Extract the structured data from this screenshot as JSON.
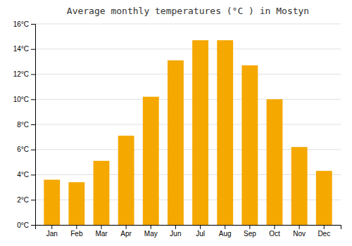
{
  "chart_data": {
    "type": "bar",
    "title": "Average monthly temperatures (°C ) in Mostyn",
    "categories": [
      "Jan",
      "Feb",
      "Mar",
      "Apr",
      "May",
      "Jun",
      "Jul",
      "Aug",
      "Sep",
      "Oct",
      "Nov",
      "Dec"
    ],
    "values": [
      3.6,
      3.4,
      5.1,
      7.1,
      10.2,
      13.1,
      14.7,
      14.7,
      12.7,
      10.0,
      6.2,
      4.3
    ],
    "color": "#F5A800",
    "ylim": [
      0,
      16
    ],
    "yticks": [
      {
        "value": 0,
        "label": "0°C"
      },
      {
        "value": 2,
        "label": "2°C"
      },
      {
        "value": 4,
        "label": "4°C"
      },
      {
        "value": 6,
        "label": "6°C"
      },
      {
        "value": 8,
        "label": "8°C"
      },
      {
        "value": 10,
        "label": "10°C"
      },
      {
        "value": 12,
        "label": "12°C"
      },
      {
        "value": 14,
        "label": "14°C"
      },
      {
        "value": 16,
        "label": "16°C"
      }
    ],
    "grid": true
  }
}
